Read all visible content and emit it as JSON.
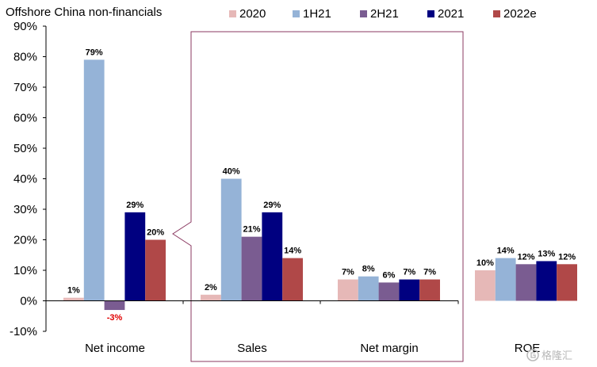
{
  "chart_data": {
    "type": "bar",
    "title": "Offshore China non-financials",
    "categories": [
      "Net income",
      "Sales",
      "Net margin",
      "ROE"
    ],
    "series": [
      {
        "name": "2020",
        "values": [
          1,
          2,
          7,
          10
        ]
      },
      {
        "name": "1H21",
        "values": [
          79,
          40,
          8,
          14
        ]
      },
      {
        "name": "2H21",
        "values": [
          -3,
          21,
          6,
          12
        ]
      },
      {
        "name": "2021",
        "values": [
          29,
          29,
          7,
          13
        ]
      },
      {
        "name": "2022e",
        "values": [
          20,
          14,
          7,
          12
        ]
      }
    ],
    "data_labels": [
      [
        "1%",
        "2%",
        "7%",
        "10%"
      ],
      [
        "79%",
        "40%",
        "8%",
        "14%"
      ],
      [
        "-3%",
        "21%",
        "6%",
        "12%"
      ],
      [
        "29%",
        "29%",
        "7%",
        "13%"
      ],
      [
        "20%",
        "14%",
        "7%",
        "12%"
      ]
    ],
    "ylim": [
      -10,
      90
    ],
    "yticks": [
      -10,
      0,
      10,
      20,
      30,
      40,
      50,
      60,
      70,
      80,
      90
    ],
    "ytick_labels": [
      "-10%",
      "0%",
      "10%",
      "20%",
      "30%",
      "40%",
      "50%",
      "60%",
      "70%",
      "80%",
      "90%"
    ],
    "legend_position": "top",
    "grid": false,
    "highlight": "callout box around Sales and Net margin",
    "colors": {
      "2020": "#e6b8b7",
      "1H21": "#95b3d7",
      "2H21": "#7a5c91",
      "2021": "#000080",
      "2022e": "#b04848",
      "axis": "#000000",
      "callout": "#8b3a62",
      "negative_label": "#e00000"
    }
  },
  "watermark": {
    "icon": "gelonghui-logo-icon",
    "text": "格隆汇"
  }
}
